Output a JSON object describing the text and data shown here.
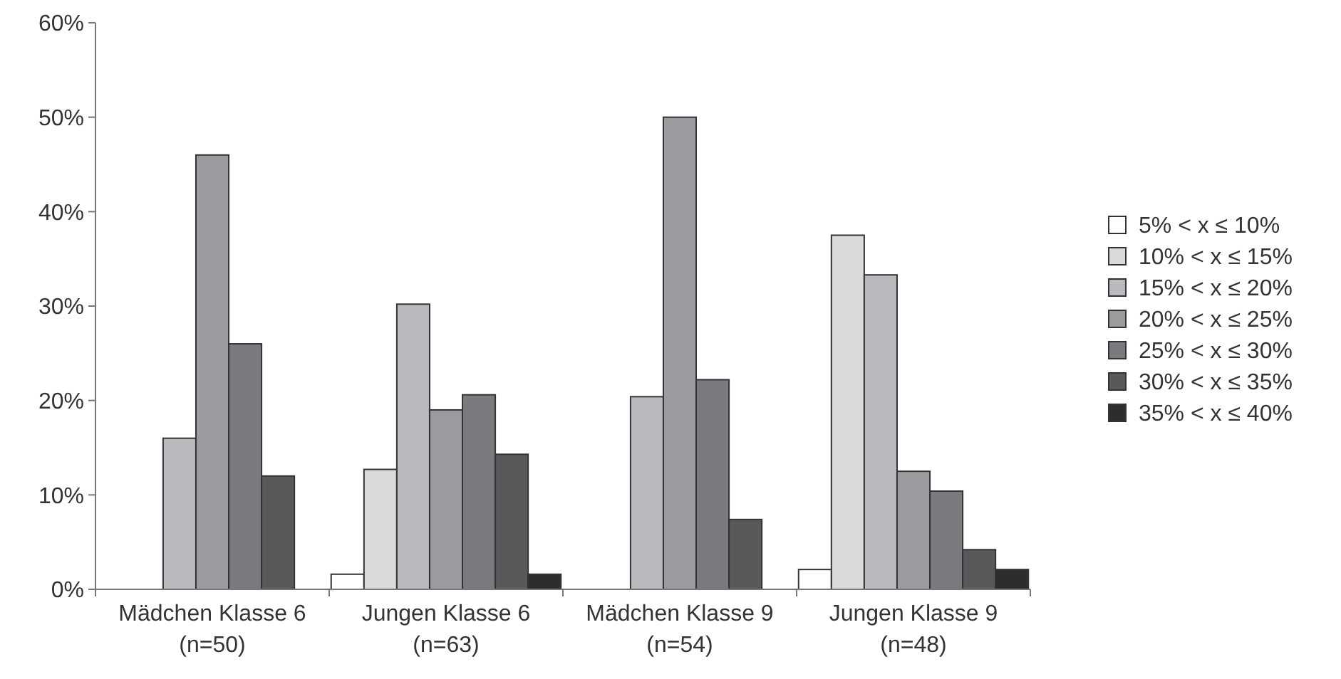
{
  "chart_data": {
    "type": "bar",
    "categories": [
      "Mädchen Klasse 6\n(n=50)",
      "Jungen Klasse 6\n(n=63)",
      "Mädchen Klasse 9\n(n=54)",
      "Jungen Klasse 9\n(n=48)"
    ],
    "series": [
      {
        "name": "5% < x ≤ 10%",
        "color": "#ffffff",
        "values": [
          null,
          1.6,
          null,
          2.1
        ]
      },
      {
        "name": "10% < x ≤ 15%",
        "color": "#d9dadc",
        "values": [
          null,
          12.7,
          null,
          37.5
        ]
      },
      {
        "name": "15% < x ≤ 20%",
        "color": "#b9babd",
        "values": [
          16,
          30.2,
          20.4,
          33.3
        ]
      },
      {
        "name": "20% < x ≤ 25%",
        "color": "#9a9b9f",
        "values": [
          46,
          19.0,
          50,
          12.5
        ]
      },
      {
        "name": "25% < x ≤ 30%",
        "color": "#7a7b7f",
        "values": [
          26,
          20.6,
          22.2,
          10.4
        ]
      },
      {
        "name": "30% < x ≤ 35%",
        "color": "#58595b",
        "values": [
          12,
          14.3,
          7.4,
          4.2
        ]
      },
      {
        "name": "35% < x ≤ 40%",
        "color": "#2d2d2e",
        "values": [
          null,
          1.6,
          null,
          2.1
        ]
      }
    ],
    "ylim": [
      0,
      60
    ],
    "yticks": [
      {
        "value": 0,
        "label": "0%"
      },
      {
        "value": 10,
        "label": "10%"
      },
      {
        "value": 20,
        "label": "20%"
      },
      {
        "value": 30,
        "label": "30%"
      },
      {
        "value": 40,
        "label": "40%"
      },
      {
        "value": 50,
        "label": "50%"
      },
      {
        "value": 60,
        "label": "60%"
      }
    ],
    "grid": false,
    "legend": "right"
  }
}
